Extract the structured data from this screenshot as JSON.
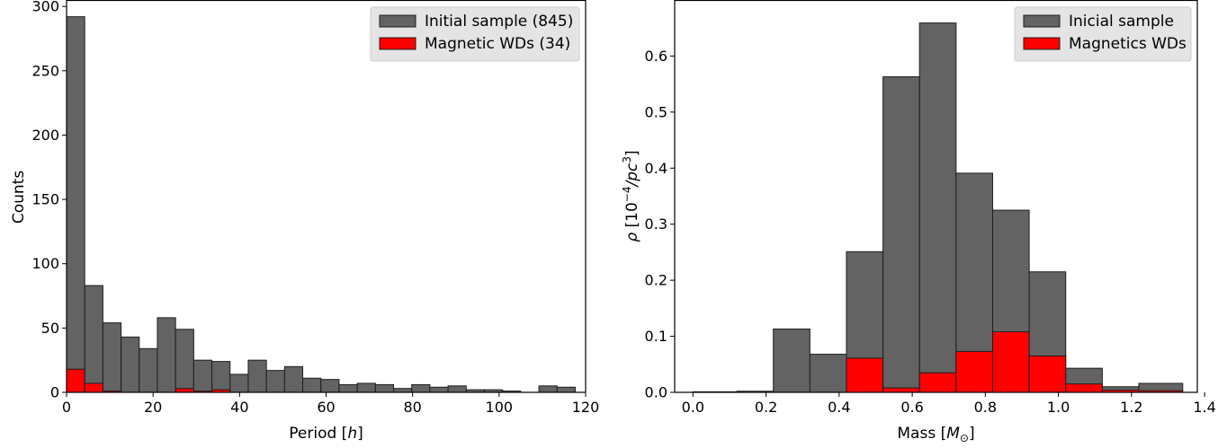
{
  "colors": {
    "initial": "#636363",
    "magnetic": "#ff0000",
    "edge": "#1e1e1e"
  },
  "chart_data": [
    {
      "type": "bar",
      "xlabel": "Period",
      "xlabel_unit": "h",
      "ylabel": "Counts",
      "xlim": [
        0,
        120
      ],
      "ylim": [
        0,
        305
      ],
      "xticks": [
        0,
        20,
        40,
        60,
        80,
        100,
        120
      ],
      "yticks": [
        0,
        50,
        100,
        150,
        200,
        250,
        300
      ],
      "legend_position": "top-right",
      "bin_edges": [
        0,
        4.2,
        8.4,
        12.6,
        16.8,
        21,
        25.2,
        29.4,
        33.6,
        37.8,
        42,
        46.2,
        50.4,
        54.6,
        58.8,
        63,
        67.2,
        71.4,
        75.6,
        79.8,
        84,
        88.2,
        92.4,
        96.6,
        100.8,
        105,
        109.2,
        113.4,
        117.6
      ],
      "series": [
        {
          "name": "Initial sample (845)",
          "color": "#636363",
          "values": [
            292,
            83,
            54,
            43,
            34,
            58,
            49,
            25,
            24,
            14,
            25,
            17,
            20,
            11,
            10,
            6,
            7,
            6,
            3,
            6,
            4,
            5,
            2,
            2,
            1,
            0,
            5,
            4
          ]
        },
        {
          "name": "Magnetic WDs (34)",
          "color": "#ff0000",
          "values": [
            18,
            7,
            1,
            0,
            0,
            0,
            3,
            1,
            2,
            0,
            0,
            0,
            0,
            0,
            0,
            0,
            0,
            0,
            0,
            0,
            0,
            0,
            0,
            0,
            0,
            0,
            0,
            0
          ]
        }
      ]
    },
    {
      "type": "bar",
      "xlabel": "Mass",
      "xlabel_unit": "M",
      "xlabel_unit_sub": "⊙",
      "ylabel_symbol": "ρ",
      "ylabel_unit": "10",
      "ylabel_unit_sup": "−4",
      "ylabel_unit_tail": "/pc",
      "ylabel_unit_sup2": "3",
      "xlim": [
        -0.05,
        1.38
      ],
      "ylim": [
        0,
        0.7
      ],
      "xticks": [
        "0.0",
        "0.2",
        "0.4",
        "0.6",
        "0.8",
        "1.0",
        "1.2",
        "1.4"
      ],
      "yticks": [
        "0.0",
        "0.1",
        "0.2",
        "0.3",
        "0.4",
        "0.5",
        "0.6"
      ],
      "legend_position": "top-right",
      "bin_edges": [
        0.0,
        0.12,
        0.22,
        0.32,
        0.42,
        0.52,
        0.62,
        0.72,
        0.82,
        0.92,
        1.02,
        1.12,
        1.22,
        1.34
      ],
      "series": [
        {
          "name": "Inicial sample",
          "color": "#636363",
          "values": [
            0.001,
            0.002,
            0.113,
            0.068,
            0.251,
            0.563,
            0.659,
            0.391,
            0.325,
            0.215,
            0.043,
            0.01,
            0.016
          ]
        },
        {
          "name": "Magnetics WDs",
          "color": "#ff0000",
          "values": [
            0,
            0,
            0,
            0,
            0.061,
            0.008,
            0.035,
            0.073,
            0.108,
            0.065,
            0.015,
            0.004,
            0.003
          ]
        }
      ]
    }
  ]
}
